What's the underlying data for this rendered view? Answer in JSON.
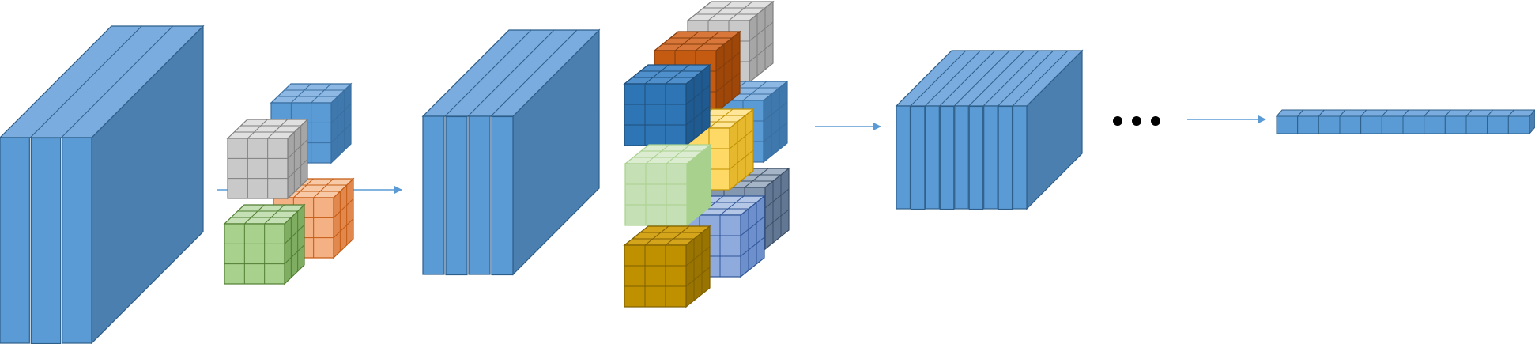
{
  "diagram": {
    "title": "",
    "colors": {
      "layer_front": "#5b9bd5",
      "layer_top": "#7aacdf",
      "layer_side": "#4a7fb0",
      "layer_edge": "#2e5f8a",
      "arrow": "#5b9bd5",
      "dots": "#000000"
    },
    "stages": [
      {
        "name": "input-volume",
        "kind": "layered-volume",
        "slices": 3
      },
      {
        "name": "kernel-group-1",
        "kind": "kernel-cluster",
        "kernels": [
          {
            "name": "kernel-blue",
            "front": "#5b9bd5",
            "top": "#8db8e3",
            "side": "#3f78ad",
            "edge": "#3a6ea0"
          },
          {
            "name": "kernel-orange",
            "front": "#f4b183",
            "top": "#f8c9a6",
            "side": "#e0884e",
            "edge": "#c55a11"
          },
          {
            "name": "kernel-gray",
            "front": "#c9c9c9",
            "top": "#e0e0e0",
            "side": "#a6a6a6",
            "edge": "#7f7f7f"
          },
          {
            "name": "kernel-green",
            "front": "#a9d18e",
            "top": "#c5e0b4",
            "side": "#7fae62",
            "edge": "#507e32"
          }
        ]
      },
      {
        "name": "feature-map-1",
        "kind": "layered-volume",
        "slices": 4
      },
      {
        "name": "kernel-group-2",
        "kind": "kernel-cluster",
        "kernels": [
          {
            "name": "kernel-gray",
            "front": "#c9c9c9",
            "top": "#e0e0e0",
            "side": "#a6a6a6",
            "edge": "#7f7f7f"
          },
          {
            "name": "kernel-dark-orange",
            "front": "#c55a11",
            "top": "#d9773a",
            "side": "#9e4709",
            "edge": "#843c0c"
          },
          {
            "name": "kernel-light-blue",
            "front": "#5b9bd5",
            "top": "#8db8e3",
            "side": "#3f78ad",
            "edge": "#3a6ea0"
          },
          {
            "name": "kernel-navy",
            "front": "#2e75b6",
            "top": "#4f8fcb",
            "side": "#1f5a91",
            "edge": "#1f4e79"
          },
          {
            "name": "kernel-yellow",
            "front": "#ffd966",
            "top": "#ffe699",
            "side": "#e6b82e",
            "edge": "#bf9000"
          },
          {
            "name": "kernel-slate",
            "front": "#8497b0",
            "top": "#a5b4c6",
            "side": "#617793",
            "edge": "#3d4f66"
          },
          {
            "name": "kernel-pale-green",
            "front": "#c5e0b4",
            "top": "#dbecd0",
            "side": "#a9d18e",
            "edge": "#a9d18e"
          },
          {
            "name": "kernel-periwinkle",
            "front": "#8faadc",
            "top": "#b4c7e7",
            "side": "#6d8fcb",
            "edge": "#2f5597"
          },
          {
            "name": "kernel-gold",
            "front": "#bf9000",
            "top": "#d4a51a",
            "side": "#9a7400",
            "edge": "#7f6000"
          }
        ]
      },
      {
        "name": "feature-map-2",
        "kind": "layered-volume",
        "slices": 9
      },
      {
        "name": "ellipsis",
        "kind": "dots",
        "count": 3
      },
      {
        "name": "output-vector",
        "kind": "vector",
        "cells": 12
      }
    ],
    "arrows": [
      {
        "name": "arrow-1",
        "from": "input-volume",
        "to": "feature-map-1"
      },
      {
        "name": "arrow-2",
        "from": "kernel-group-2",
        "to": "feature-map-2"
      },
      {
        "name": "arrow-3",
        "from": "ellipsis",
        "to": "output-vector"
      }
    ]
  }
}
